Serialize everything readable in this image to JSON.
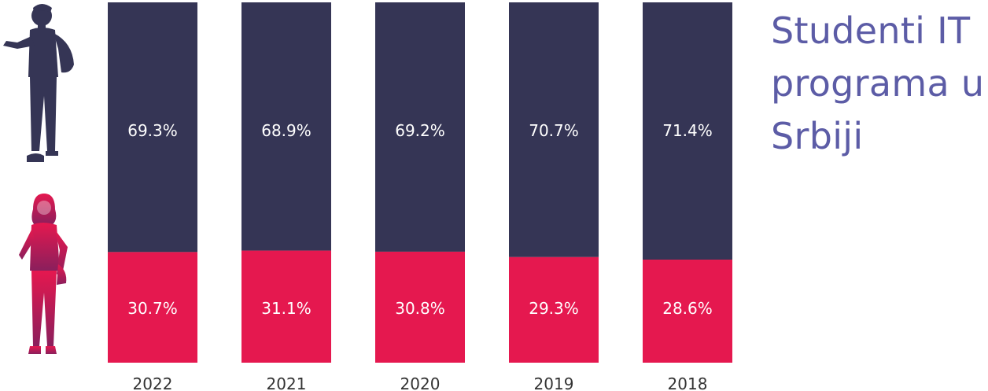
{
  "title_lines": [
    "Studenti IT",
    "programa u",
    "Srbiji"
  ],
  "colors": {
    "male": "#353555",
    "female": "#e5184f",
    "title": "#5c5ca6",
    "axis_text": "#333333",
    "label_text": "#ffffff"
  },
  "icons": {
    "male": "male-student-icon",
    "female": "female-student-icon"
  },
  "chart_data": {
    "type": "bar",
    "stacked": true,
    "categories": [
      "2022",
      "2021",
      "2020",
      "2019",
      "2018"
    ],
    "series": [
      {
        "values": [
          69.3,
          68.9,
          69.2,
          70.7,
          71.4
        ],
        "labels": [
          "69.3%",
          "68.9%",
          "69.2%",
          "70.7%",
          "71.4%"
        ]
      },
      {
        "values": [
          30.7,
          31.1,
          30.8,
          29.3,
          28.6
        ],
        "labels": [
          "30.7%",
          "31.1%",
          "30.8%",
          "29.3%",
          "28.6%"
        ]
      }
    ],
    "ylim": [
      0,
      100
    ],
    "grid": false
  }
}
